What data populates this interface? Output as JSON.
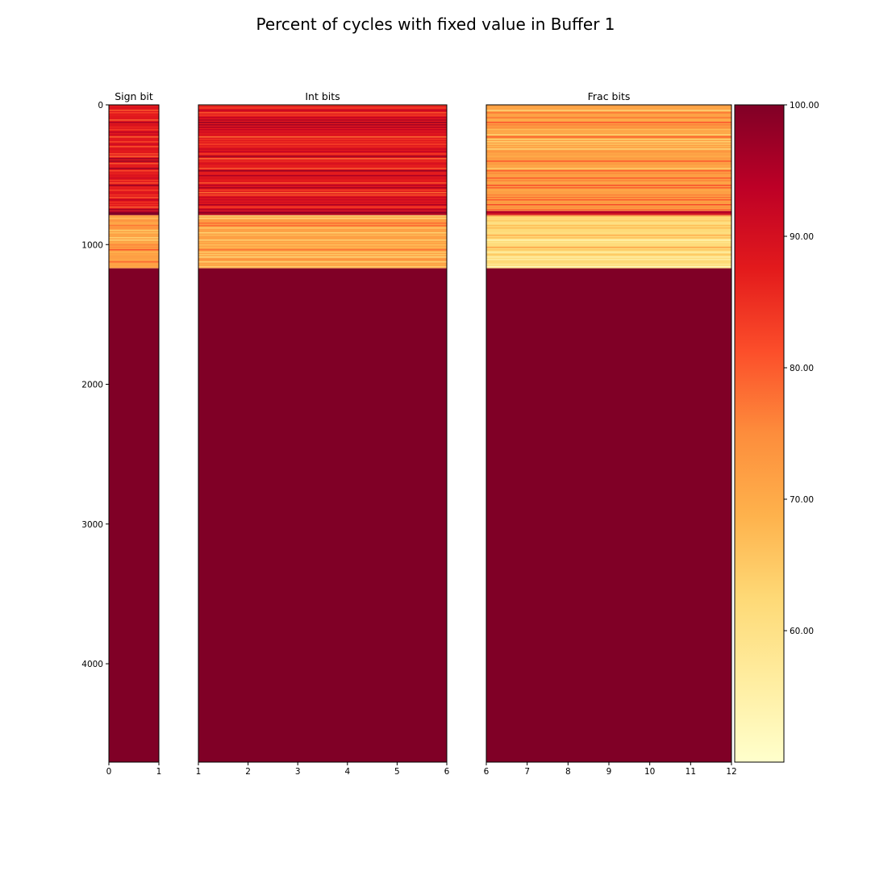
{
  "figure": {
    "title": "Percent of cycles with fixed value in Buffer 1"
  },
  "chart_data": {
    "type": "heatmap",
    "title": "Percent of cycles with fixed value in Buffer 1",
    "y_range": [
      0,
      4704
    ],
    "y_ticks": [
      0,
      1000,
      2000,
      3000,
      4000
    ],
    "y_tick_labels": [
      "0",
      "1000",
      "2000",
      "3000",
      "4000"
    ],
    "y_inverted": true,
    "colormap": "YlOrRd",
    "value_range": [
      50,
      100
    ],
    "colorbar": {
      "ticks": [
        60,
        70,
        80,
        90,
        100
      ],
      "tick_labels": [
        "60.00",
        "70.00",
        "80.00",
        "90.00",
        "100.00"
      ]
    },
    "panels": [
      {
        "title": "Sign bit",
        "x_range": [
          0,
          1
        ],
        "x_ticks": [
          0,
          1
        ],
        "x_tick_labels": [
          "0",
          "1"
        ],
        "bands": [
          {
            "y_start": 0,
            "y_end": 760,
            "approx_value": 88
          },
          {
            "y_start": 760,
            "y_end": 790,
            "approx_value": 100
          },
          {
            "y_start": 790,
            "y_end": 1170,
            "approx_value": 72
          },
          {
            "y_start": 1170,
            "y_end": 4704,
            "approx_value": 100
          }
        ]
      },
      {
        "title": "Int bits",
        "x_range": [
          1,
          6
        ],
        "x_ticks": [
          1,
          2,
          3,
          4,
          5,
          6
        ],
        "x_tick_labels": [
          "1",
          "2",
          "3",
          "4",
          "5",
          "6"
        ],
        "bands": [
          {
            "y_start": 0,
            "y_end": 760,
            "approx_value": 88
          },
          {
            "y_start": 760,
            "y_end": 790,
            "approx_value": 100
          },
          {
            "y_start": 790,
            "y_end": 1170,
            "approx_value": 72
          },
          {
            "y_start": 1170,
            "y_end": 4704,
            "approx_value": 100
          }
        ]
      },
      {
        "title": "Frac bits",
        "x_range": [
          6,
          12
        ],
        "x_ticks": [
          6,
          7,
          8,
          9,
          10,
          11,
          12
        ],
        "x_tick_labels": [
          "6",
          "7",
          "8",
          "9",
          "10",
          "11",
          "12"
        ],
        "bands": [
          {
            "y_start": 0,
            "y_end": 760,
            "approx_value": 72
          },
          {
            "y_start": 760,
            "y_end": 790,
            "approx_value": 95
          },
          {
            "y_start": 790,
            "y_end": 1170,
            "approx_value": 62
          },
          {
            "y_start": 1170,
            "y_end": 4704,
            "approx_value": 100
          }
        ]
      }
    ]
  }
}
